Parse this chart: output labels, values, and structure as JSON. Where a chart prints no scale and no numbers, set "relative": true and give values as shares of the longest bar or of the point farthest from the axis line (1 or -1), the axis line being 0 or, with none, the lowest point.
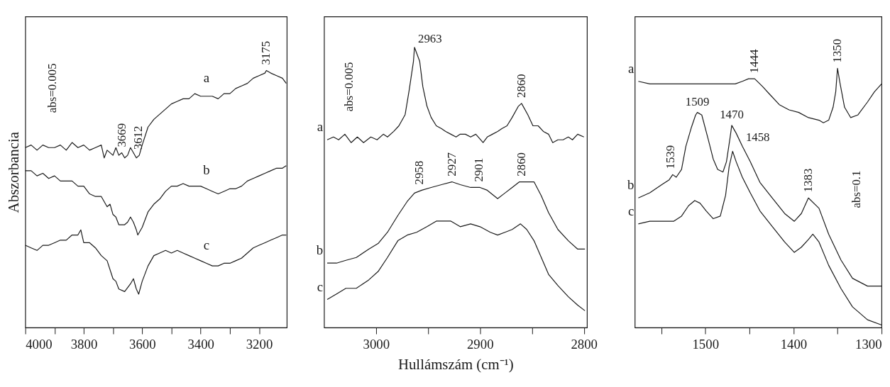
{
  "chart_data": [
    {
      "type": "line",
      "relative": true,
      "ylabel": "Abszorbancia",
      "xlim": [
        4000,
        3105
      ],
      "xticks": [
        4000,
        {
          "value": 3900,
          "label": null
        },
        3800,
        {
          "value": 3700,
          "label": null
        },
        3600,
        {
          "value": 3500,
          "label": null
        },
        3400,
        {
          "value": 3300,
          "label": null
        },
        3200
      ],
      "series": [
        {
          "name": "a",
          "color": "#1a1a1a",
          "x": [
            4000,
            3980,
            3960,
            3940,
            3920,
            3900,
            3880,
            3860,
            3840,
            3820,
            3800,
            3780,
            3760,
            3740,
            3730,
            3720,
            3700,
            3690,
            3680,
            3670,
            3660,
            3650,
            3640,
            3630,
            3620,
            3610,
            3600,
            3580,
            3560,
            3540,
            3520,
            3500,
            3480,
            3460,
            3440,
            3420,
            3400,
            3380,
            3360,
            3340,
            3320,
            3300,
            3280,
            3260,
            3240,
            3220,
            3200,
            3180,
            3175,
            3160,
            3140,
            3120,
            3107
          ],
          "values": [
            0.7,
            0.71,
            0.69,
            0.71,
            0.7,
            0.7,
            0.71,
            0.69,
            0.72,
            0.7,
            0.71,
            0.69,
            0.7,
            0.71,
            0.66,
            0.69,
            0.67,
            0.7,
            0.67,
            0.68,
            0.66,
            0.67,
            0.7,
            0.68,
            0.66,
            0.67,
            0.71,
            0.78,
            0.81,
            0.83,
            0.85,
            0.87,
            0.88,
            0.89,
            0.89,
            0.91,
            0.9,
            0.9,
            0.9,
            0.89,
            0.91,
            0.91,
            0.93,
            0.94,
            0.95,
            0.97,
            0.98,
            0.99,
            1.0,
            0.99,
            0.98,
            0.97,
            0.95
          ]
        },
        {
          "name": "b",
          "color": "#1a1a1a",
          "x": [
            4000,
            3980,
            3960,
            3940,
            3920,
            3900,
            3880,
            3860,
            3840,
            3820,
            3800,
            3780,
            3760,
            3740,
            3720,
            3710,
            3700,
            3690,
            3680,
            3660,
            3650,
            3640,
            3630,
            3620,
            3615,
            3600,
            3580,
            3560,
            3540,
            3520,
            3500,
            3480,
            3460,
            3440,
            3420,
            3400,
            3380,
            3360,
            3340,
            3320,
            3300,
            3280,
            3260,
            3240,
            3220,
            3200,
            3180,
            3160,
            3140,
            3120,
            3107
          ],
          "values": [
            0.61,
            0.61,
            0.59,
            0.6,
            0.58,
            0.59,
            0.57,
            0.57,
            0.57,
            0.55,
            0.55,
            0.52,
            0.51,
            0.51,
            0.47,
            0.48,
            0.44,
            0.43,
            0.4,
            0.4,
            0.41,
            0.43,
            0.41,
            0.38,
            0.36,
            0.39,
            0.45,
            0.48,
            0.5,
            0.53,
            0.55,
            0.55,
            0.56,
            0.55,
            0.55,
            0.55,
            0.54,
            0.53,
            0.52,
            0.53,
            0.54,
            0.54,
            0.55,
            0.57,
            0.58,
            0.59,
            0.6,
            0.61,
            0.62,
            0.62,
            0.63
          ]
        },
        {
          "name": "c",
          "color": "#1a1a1a",
          "x": [
            4000,
            3980,
            3960,
            3940,
            3920,
            3900,
            3880,
            3860,
            3840,
            3820,
            3810,
            3800,
            3780,
            3760,
            3740,
            3720,
            3700,
            3690,
            3680,
            3660,
            3640,
            3630,
            3620,
            3612,
            3600,
            3580,
            3560,
            3540,
            3520,
            3500,
            3480,
            3460,
            3440,
            3420,
            3400,
            3380,
            3360,
            3340,
            3320,
            3300,
            3280,
            3260,
            3240,
            3220,
            3200,
            3180,
            3160,
            3140,
            3120,
            3107
          ],
          "values": [
            0.32,
            0.31,
            0.3,
            0.32,
            0.32,
            0.33,
            0.34,
            0.34,
            0.36,
            0.36,
            0.38,
            0.33,
            0.33,
            0.31,
            0.28,
            0.26,
            0.19,
            0.18,
            0.15,
            0.14,
            0.17,
            0.19,
            0.15,
            0.13,
            0.18,
            0.24,
            0.28,
            0.29,
            0.3,
            0.29,
            0.3,
            0.29,
            0.28,
            0.27,
            0.26,
            0.25,
            0.24,
            0.24,
            0.25,
            0.25,
            0.26,
            0.27,
            0.29,
            0.31,
            0.32,
            0.33,
            0.34,
            0.35,
            0.36,
            0.36
          ]
        }
      ],
      "annotations": [
        "abs=0.005",
        {
          "text": "3669",
          "x": 3669,
          "y": 0.68
        },
        {
          "text": "3612",
          "x": 3612,
          "y": 0.67
        },
        {
          "text": "3175",
          "x": 3175,
          "y": 1.0
        }
      ]
    },
    {
      "type": "line",
      "relative": true,
      "xlabel": "Hullámszám (cm⁻¹)",
      "xlim": [
        3050,
        2797
      ],
      "xticks": [
        3000,
        {
          "value": 2950,
          "label": null
        },
        2900,
        {
          "value": 2850,
          "label": null
        },
        2800
      ],
      "series": [
        {
          "name": "a",
          "color": "#1a1a1a",
          "x": [
            3047,
            3041,
            3036,
            3030,
            3024,
            3018,
            3012,
            3005,
            2999,
            2993,
            2989,
            2983,
            2978,
            2972,
            2968,
            2964,
            2963,
            2958,
            2955,
            2951,
            2947,
            2942,
            2937,
            2933,
            2928,
            2923,
            2919,
            2914,
            2909,
            2904,
            2897,
            2893,
            2888,
            2883,
            2879,
            2874,
            2869,
            2863,
            2860,
            2854,
            2849,
            2844,
            2839,
            2834,
            2830,
            2825,
            2820,
            2815,
            2811,
            2806,
            2800
          ],
          "values": [
            0.67,
            0.68,
            0.67,
            0.69,
            0.66,
            0.68,
            0.66,
            0.68,
            0.67,
            0.69,
            0.68,
            0.7,
            0.72,
            0.76,
            0.85,
            0.95,
            1.0,
            0.95,
            0.86,
            0.79,
            0.75,
            0.72,
            0.71,
            0.7,
            0.69,
            0.68,
            0.69,
            0.69,
            0.68,
            0.69,
            0.66,
            0.68,
            0.69,
            0.7,
            0.71,
            0.72,
            0.75,
            0.79,
            0.8,
            0.76,
            0.72,
            0.72,
            0.7,
            0.69,
            0.66,
            0.67,
            0.67,
            0.68,
            0.67,
            0.69,
            0.68
          ]
        },
        {
          "name": "b",
          "color": "#1a1a1a",
          "x": [
            3047,
            3038,
            3029,
            3019,
            3007,
            2998,
            2989,
            2979,
            2970,
            2963,
            2956,
            2947,
            2937,
            2927,
            2919,
            2909,
            2900,
            2893,
            2883,
            2876,
            2869,
            2862,
            2855,
            2848,
            2841,
            2834,
            2825,
            2815,
            2806,
            2799
          ],
          "values": [
            0.23,
            0.23,
            0.24,
            0.25,
            0.28,
            0.3,
            0.34,
            0.4,
            0.45,
            0.48,
            0.49,
            0.5,
            0.51,
            0.52,
            0.51,
            0.5,
            0.5,
            0.49,
            0.46,
            0.48,
            0.5,
            0.52,
            0.52,
            0.52,
            0.47,
            0.41,
            0.35,
            0.31,
            0.28,
            0.28
          ]
        },
        {
          "name": "c",
          "color": "#1a1a1a",
          "x": [
            3047,
            3038,
            3029,
            3019,
            3007,
            2998,
            2989,
            2979,
            2970,
            2961,
            2951,
            2942,
            2933,
            2928,
            2919,
            2909,
            2900,
            2890,
            2883,
            2876,
            2869,
            2861,
            2855,
            2848,
            2841,
            2834,
            2825,
            2815,
            2806,
            2799
          ],
          "values": [
            0.1,
            0.12,
            0.14,
            0.14,
            0.17,
            0.2,
            0.25,
            0.31,
            0.33,
            0.34,
            0.36,
            0.38,
            0.38,
            0.38,
            0.36,
            0.37,
            0.36,
            0.34,
            0.33,
            0.34,
            0.35,
            0.37,
            0.35,
            0.31,
            0.25,
            0.19,
            0.15,
            0.11,
            0.08,
            0.06
          ]
        }
      ],
      "annotations": [
        "abs=0.005",
        {
          "text": "2963",
          "x": 2963,
          "y": 1.0
        },
        {
          "text": "2860",
          "x": 2860,
          "y": 0.8
        },
        {
          "text": "2958",
          "x": 2958,
          "y": 0.49
        },
        {
          "text": "2927",
          "x": 2927,
          "y": 0.52
        },
        {
          "text": "2901",
          "x": 2901,
          "y": 0.5
        },
        {
          "text": "2860",
          "x": 2860,
          "y": 0.52
        }
      ]
    },
    {
      "type": "line",
      "relative": true,
      "xlim": [
        1580,
        1300
      ],
      "xticks": [
        {
          "value": 1550,
          "label": null
        },
        1500,
        {
          "value": 1450,
          "label": null
        },
        1400,
        {
          "value": 1350,
          "label": null
        },
        1300
      ],
      "series": [
        {
          "name": "a",
          "color": "#1a1a1a",
          "x": [
            1576,
            1563,
            1550,
            1536,
            1522,
            1508,
            1494,
            1480,
            1466,
            1458,
            1451,
            1444,
            1435,
            1427,
            1416,
            1405,
            1394,
            1383,
            1371,
            1366,
            1360,
            1355,
            1352,
            1350,
            1347,
            1342,
            1335,
            1327,
            1316,
            1308,
            1300
          ],
          "values": [
            0.95,
            0.94,
            0.94,
            0.94,
            0.94,
            0.94,
            0.94,
            0.94,
            0.94,
            0.95,
            0.96,
            0.96,
            0.93,
            0.9,
            0.86,
            0.84,
            0.83,
            0.81,
            0.8,
            0.79,
            0.8,
            0.85,
            0.91,
            1.0,
            0.94,
            0.85,
            0.81,
            0.82,
            0.87,
            0.91,
            0.94
          ]
        },
        {
          "name": "b",
          "color": "#1a1a1a",
          "x": [
            1576,
            1563,
            1550,
            1541,
            1537,
            1533,
            1527,
            1522,
            1516,
            1511,
            1509,
            1504,
            1497,
            1491,
            1486,
            1480,
            1476,
            1472,
            1470,
            1465,
            1458,
            1449,
            1438,
            1424,
            1410,
            1399,
            1391,
            1383,
            1371,
            1360,
            1346,
            1333,
            1316,
            1300
          ],
          "values": [
            0.5,
            0.52,
            0.55,
            0.57,
            0.59,
            0.58,
            0.61,
            0.7,
            0.77,
            0.82,
            0.83,
            0.82,
            0.73,
            0.65,
            0.61,
            0.6,
            0.64,
            0.73,
            0.78,
            0.75,
            0.7,
            0.64,
            0.56,
            0.5,
            0.44,
            0.41,
            0.44,
            0.5,
            0.46,
            0.36,
            0.26,
            0.19,
            0.16,
            0.16
          ]
        },
        {
          "name": "c",
          "color": "#1a1a1a",
          "x": [
            1576,
            1563,
            1550,
            1536,
            1527,
            1519,
            1512,
            1506,
            1499,
            1491,
            1483,
            1477,
            1473,
            1469,
            1465,
            1458,
            1449,
            1438,
            1424,
            1410,
            1399,
            1391,
            1383,
            1378,
            1371,
            1360,
            1346,
            1333,
            1316,
            1300
          ],
          "values": [
            0.4,
            0.41,
            0.41,
            0.41,
            0.43,
            0.47,
            0.49,
            0.48,
            0.45,
            0.42,
            0.43,
            0.51,
            0.62,
            0.68,
            0.64,
            0.58,
            0.52,
            0.45,
            0.39,
            0.33,
            0.29,
            0.31,
            0.34,
            0.36,
            0.33,
            0.24,
            0.15,
            0.08,
            0.03,
            0.01
          ]
        }
      ],
      "annotations": [
        "abs=0.1",
        {
          "text": "1444",
          "x": 1444,
          "y": 0.96
        },
        {
          "text": "1350",
          "x": 1350,
          "y": 1.0
        },
        {
          "text": "1539",
          "x": 1539,
          "y": 0.59
        },
        {
          "text": "1509",
          "x": 1509,
          "y": 0.83
        },
        {
          "text": "1470",
          "x": 1470,
          "y": 0.78
        },
        {
          "text": "1458",
          "x": 1458,
          "y": 0.7
        },
        {
          "text": "1383",
          "x": 1383,
          "y": 0.5
        }
      ]
    }
  ]
}
